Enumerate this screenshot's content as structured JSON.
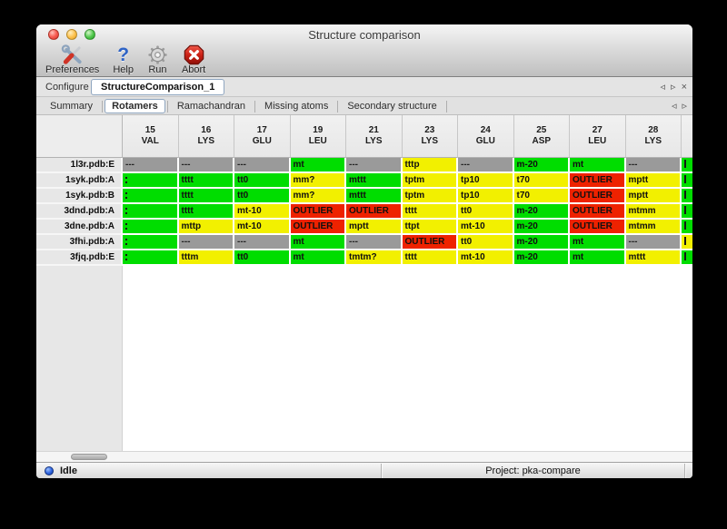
{
  "window": {
    "title": "Structure comparison"
  },
  "toolbar": {
    "items": [
      {
        "label": "Preferences",
        "icon": "tools-icon"
      },
      {
        "label": "Help",
        "icon": "help-question-icon",
        "glyph": "?"
      },
      {
        "label": "Run",
        "icon": "gear-icon"
      },
      {
        "label": "Abort",
        "icon": "abort-icon"
      }
    ]
  },
  "configure": {
    "label": "Configure",
    "job_name": "StructureComparison_1"
  },
  "nav": {
    "prev_glyph": "◃",
    "next_glyph": "▹",
    "close_glyph": "×"
  },
  "tabs": {
    "items": [
      "Summary",
      "Rotamers",
      "Ramachandran",
      "Missing atoms",
      "Secondary structure"
    ],
    "selected": "Rotamers"
  },
  "table": {
    "columns": [
      {
        "num": "15",
        "res": "VAL"
      },
      {
        "num": "16",
        "res": "LYS"
      },
      {
        "num": "17",
        "res": "GLU"
      },
      {
        "num": "19",
        "res": "LEU"
      },
      {
        "num": "21",
        "res": "LYS"
      },
      {
        "num": "23",
        "res": "LYS"
      },
      {
        "num": "24",
        "res": "GLU"
      },
      {
        "num": "25",
        "res": "ASP"
      },
      {
        "num": "27",
        "res": "LEU"
      },
      {
        "num": "28",
        "res": "LYS"
      }
    ],
    "rows": [
      {
        "label": "1l3r.pdb:E",
        "overflow": "ok",
        "cells": [
          {
            "text": "---",
            "status": "na"
          },
          {
            "text": "---",
            "status": "na"
          },
          {
            "text": "---",
            "status": "na"
          },
          {
            "text": "mt",
            "status": "ok"
          },
          {
            "text": "---",
            "status": "na"
          },
          {
            "text": "tttp",
            "status": "warn"
          },
          {
            "text": "---",
            "status": "na"
          },
          {
            "text": "m-20",
            "status": "ok"
          },
          {
            "text": "mt",
            "status": "ok"
          },
          {
            "text": "---",
            "status": "na"
          }
        ]
      },
      {
        "label": "1syk.pdb:A",
        "overflow": "ok",
        "cells": [
          {
            "text": "",
            "status": "blank"
          },
          {
            "text": "tttt",
            "status": "ok"
          },
          {
            "text": "tt0",
            "status": "ok"
          },
          {
            "text": "mm?",
            "status": "warn"
          },
          {
            "text": "mttt",
            "status": "ok"
          },
          {
            "text": "tptm",
            "status": "warn"
          },
          {
            "text": "tp10",
            "status": "warn"
          },
          {
            "text": "t70",
            "status": "warn"
          },
          {
            "text": "OUTLIER",
            "status": "outlier"
          },
          {
            "text": "mptt",
            "status": "warn"
          }
        ]
      },
      {
        "label": "1syk.pdb:B",
        "overflow": "ok",
        "cells": [
          {
            "text": "",
            "status": "blank"
          },
          {
            "text": "tttt",
            "status": "ok"
          },
          {
            "text": "tt0",
            "status": "ok"
          },
          {
            "text": "mm?",
            "status": "warn"
          },
          {
            "text": "mttt",
            "status": "ok"
          },
          {
            "text": "tptm",
            "status": "warn"
          },
          {
            "text": "tp10",
            "status": "warn"
          },
          {
            "text": "t70",
            "status": "warn"
          },
          {
            "text": "OUTLIER",
            "status": "outlier"
          },
          {
            "text": "mptt",
            "status": "warn"
          }
        ]
      },
      {
        "label": "3dnd.pdb:A",
        "overflow": "ok",
        "cells": [
          {
            "text": "",
            "status": "blank"
          },
          {
            "text": "tttt",
            "status": "ok"
          },
          {
            "text": "mt-10",
            "status": "warn"
          },
          {
            "text": "OUTLIER",
            "status": "outlier"
          },
          {
            "text": "OUTLIER",
            "status": "outlier"
          },
          {
            "text": "tttt",
            "status": "warn"
          },
          {
            "text": "tt0",
            "status": "warn"
          },
          {
            "text": "m-20",
            "status": "ok"
          },
          {
            "text": "OUTLIER",
            "status": "outlier"
          },
          {
            "text": "mtmm",
            "status": "warn"
          }
        ]
      },
      {
        "label": "3dne.pdb:A",
        "overflow": "ok",
        "cells": [
          {
            "text": "",
            "status": "blank"
          },
          {
            "text": "mttp",
            "status": "warn"
          },
          {
            "text": "mt-10",
            "status": "warn"
          },
          {
            "text": "OUTLIER",
            "status": "outlier"
          },
          {
            "text": "mptt",
            "status": "warn"
          },
          {
            "text": "ttpt",
            "status": "warn"
          },
          {
            "text": "mt-10",
            "status": "warn"
          },
          {
            "text": "m-20",
            "status": "ok"
          },
          {
            "text": "OUTLIER",
            "status": "outlier"
          },
          {
            "text": "mtmm",
            "status": "warn"
          }
        ]
      },
      {
        "label": "3fhi.pdb:A",
        "overflow": "warn",
        "cells": [
          {
            "text": "",
            "status": "blank"
          },
          {
            "text": "---",
            "status": "na"
          },
          {
            "text": "---",
            "status": "na"
          },
          {
            "text": "mt",
            "status": "ok"
          },
          {
            "text": "---",
            "status": "na"
          },
          {
            "text": "OUTLIER",
            "status": "outlier"
          },
          {
            "text": "tt0",
            "status": "warn"
          },
          {
            "text": "m-20",
            "status": "ok"
          },
          {
            "text": "mt",
            "status": "ok"
          },
          {
            "text": "---",
            "status": "na"
          }
        ]
      },
      {
        "label": "3fjq.pdb:E",
        "overflow": "ok",
        "cells": [
          {
            "text": "",
            "status": "blank"
          },
          {
            "text": "tttm",
            "status": "warn"
          },
          {
            "text": "tt0",
            "status": "ok"
          },
          {
            "text": "mt",
            "status": "ok"
          },
          {
            "text": "tmtm?",
            "status": "warn"
          },
          {
            "text": "tttt",
            "status": "warn"
          },
          {
            "text": "mt-10",
            "status": "warn"
          },
          {
            "text": "m-20",
            "status": "ok"
          },
          {
            "text": "mt",
            "status": "ok"
          },
          {
            "text": "mttt",
            "status": "warn"
          }
        ]
      }
    ]
  },
  "status_bar": {
    "state": "Idle",
    "project": "Project: pka-compare"
  },
  "colors": {
    "status": {
      "ok": "#00dd00",
      "warn": "#f2f000",
      "outlier": "#ee2200",
      "na": "#9a9a9a",
      "blank": "#00dd00"
    },
    "selection_border": "#8fa6c0"
  }
}
